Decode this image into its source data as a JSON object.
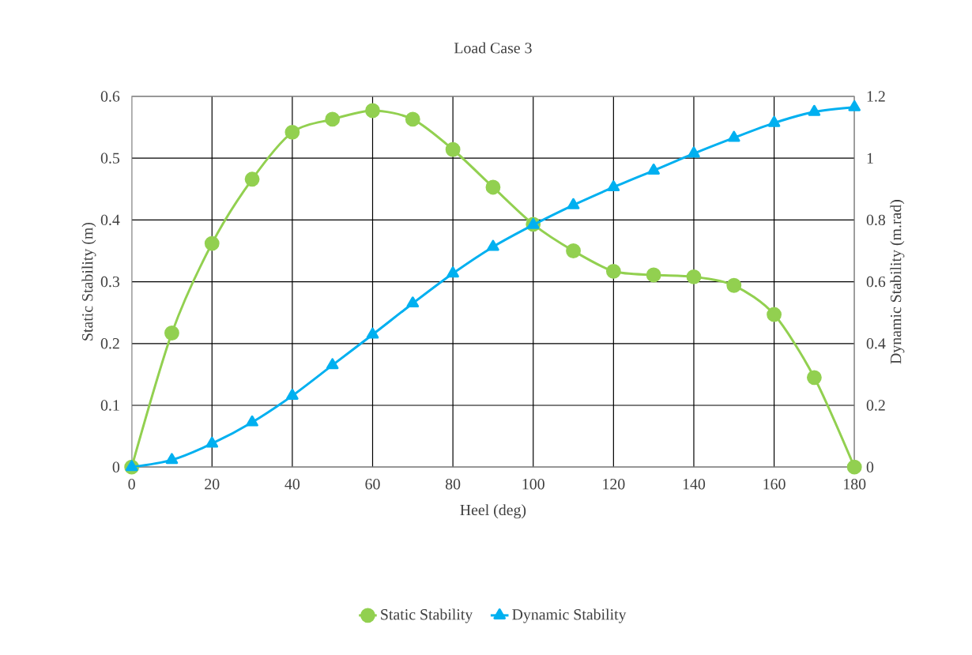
{
  "chart_data": {
    "type": "line",
    "title": "Load Case 3",
    "xlabel": "Heel (deg)",
    "ylabel": "Static Stability  (m)",
    "y2label": "Dynamic  Stability  (m.rad)",
    "x": [
      0,
      10,
      20,
      30,
      40,
      50,
      60,
      70,
      80,
      90,
      100,
      110,
      120,
      130,
      140,
      150,
      160,
      170,
      180
    ],
    "series": [
      {
        "name": "Static Stability",
        "color": "#92d050",
        "marker": "circle",
        "values": [
          0,
          0.217,
          0.362,
          0.466,
          0.542,
          0.563,
          0.577,
          0.563,
          0.514,
          0.453,
          0.393,
          0.35,
          0.317,
          0.311,
          0.308,
          0.294,
          0.247,
          0.145,
          0
        ]
      },
      {
        "name": "Dynamic Stability",
        "color": "#00b0f0",
        "marker": "triangle",
        "axis": "y2",
        "values": [
          0,
          0.023,
          0.076,
          0.145,
          0.231,
          0.33,
          0.429,
          0.53,
          0.627,
          0.713,
          0.784,
          0.848,
          0.906,
          0.96,
          1.015,
          1.066,
          1.114,
          1.15,
          1.165
        ]
      }
    ],
    "xlim": [
      0,
      180
    ],
    "xticks": [
      0,
      20,
      40,
      60,
      80,
      100,
      120,
      140,
      160,
      180
    ],
    "ylim": [
      0,
      0.6
    ],
    "yticks": [
      0,
      0.1,
      0.2,
      0.3,
      0.4,
      0.5,
      0.6
    ],
    "y2lim": [
      0,
      1.2
    ],
    "y2ticks": [
      0,
      0.2,
      0.4,
      0.6,
      0.8,
      1,
      1.2
    ],
    "grid": true,
    "legend": "bottom"
  }
}
